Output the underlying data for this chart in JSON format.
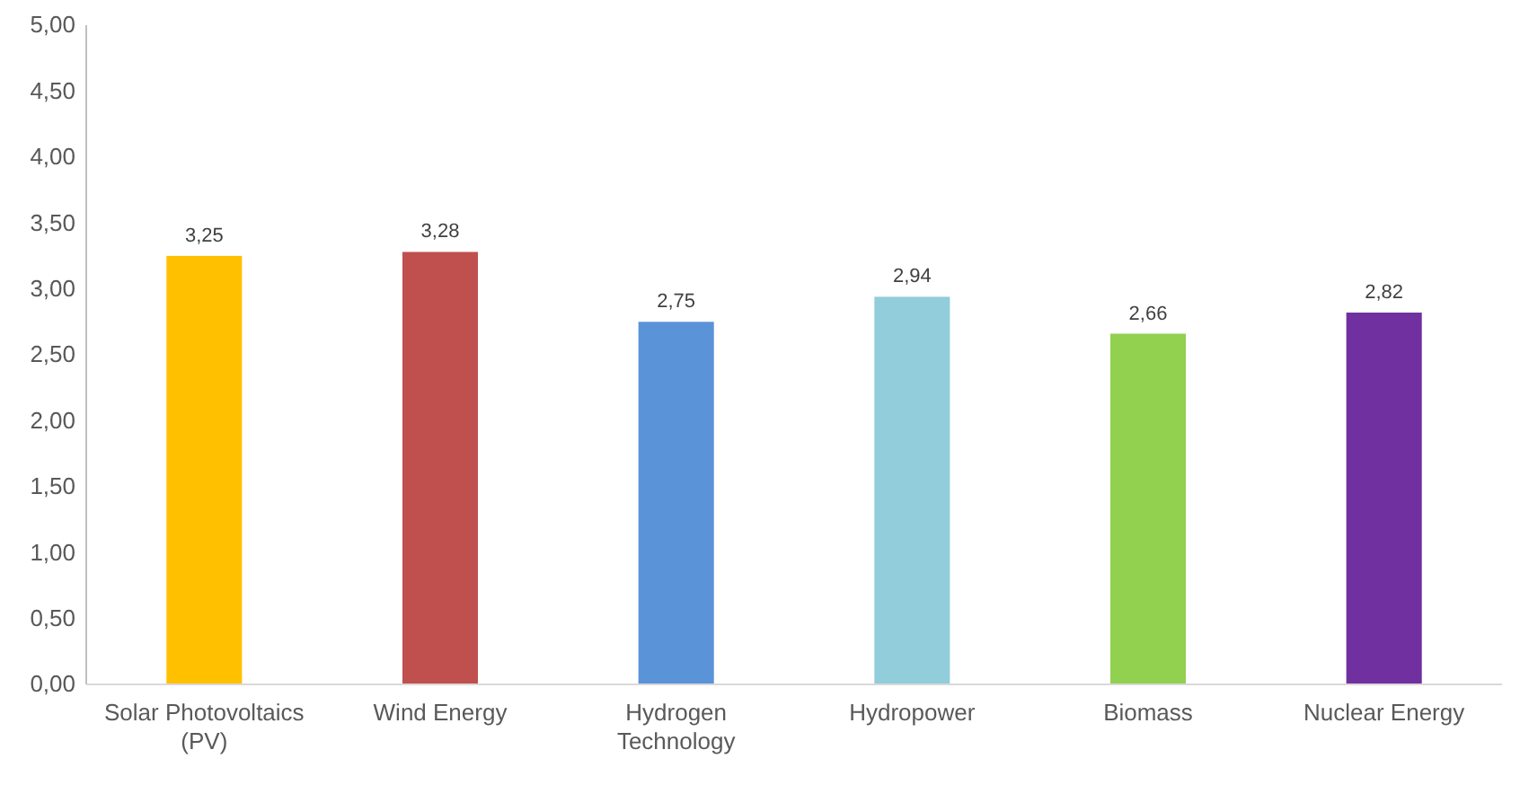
{
  "chart_data": {
    "type": "bar",
    "categories": [
      "Solar Photovoltaics (PV)",
      "Wind Energy",
      "Hydrogen Technology",
      "Hydropower",
      "Biomass",
      "Nuclear Energy"
    ],
    "values": [
      3.25,
      3.28,
      2.75,
      2.94,
      2.66,
      2.82
    ],
    "colors": [
      "#ffc000",
      "#c0504d",
      "#5b93d8",
      "#92cddc",
      "#92d050",
      "#7030a0"
    ],
    "value_labels": [
      "3,25",
      "3,28",
      "2,75",
      "2,94",
      "2,66",
      "2,82"
    ],
    "ylim": [
      0,
      5
    ],
    "yticks": [
      {
        "value": 0,
        "label": "0,00"
      },
      {
        "value": 0.5,
        "label": "0,50"
      },
      {
        "value": 1,
        "label": "1,00"
      },
      {
        "value": 1.5,
        "label": "1,50"
      },
      {
        "value": 2,
        "label": "2,00"
      },
      {
        "value": 2.5,
        "label": "2,50"
      },
      {
        "value": 3,
        "label": "3,00"
      },
      {
        "value": 3.5,
        "label": "3,50"
      },
      {
        "value": 4,
        "label": "4,00"
      },
      {
        "value": 4.5,
        "label": "4,50"
      },
      {
        "value": 5,
        "label": "5,00"
      }
    ],
    "grid": false
  }
}
